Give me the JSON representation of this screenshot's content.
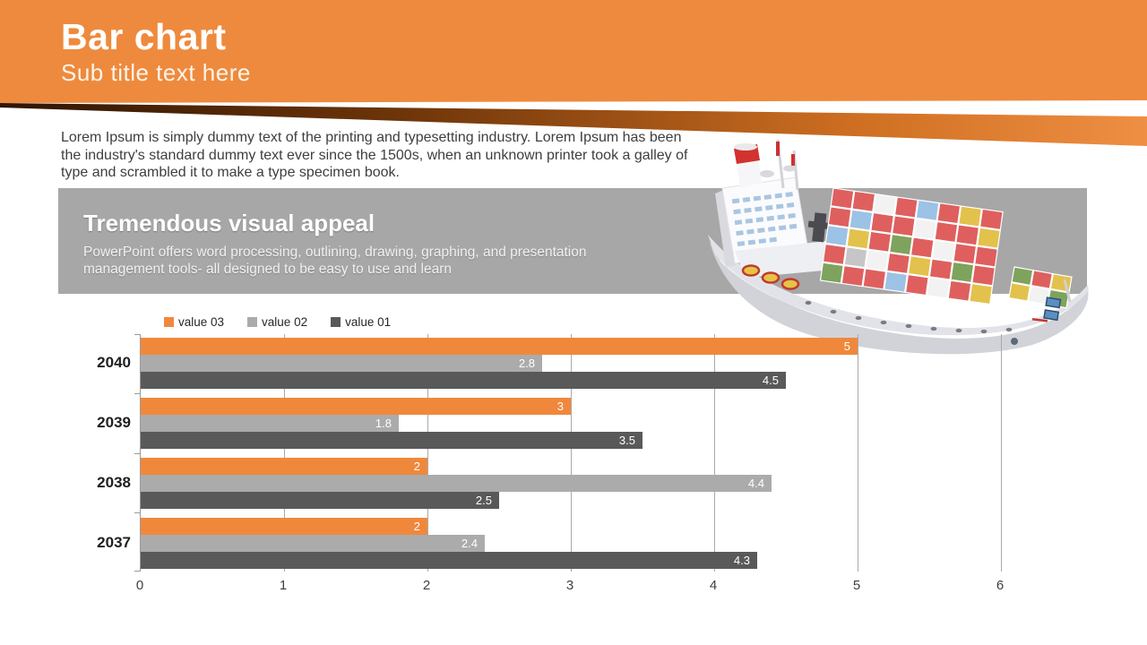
{
  "slide": {
    "title": "Bar chart",
    "subtitle": "Sub title text here",
    "body_text": "Lorem Ipsum is simply dummy text of the printing and typesetting  industry. Lorem Ipsum has been the industry's standard dummy text ever since the 1500s, when an unknown printer took a galley of type and scrambled it to make a type specimen book.",
    "banner": {
      "title": "Tremendous visual appeal",
      "text": "PowerPoint offers word processing, outlining,  drawing, graphing, and presentation management tools- all designed to be easy to use and learn"
    },
    "colors": {
      "accent_orange": "#EE8A3D",
      "stripe_dark": "#3A1C05",
      "banner_gray": "#A7A7A7",
      "body_text": "#3E3E3E"
    }
  },
  "chart_data": {
    "type": "bar",
    "orientation": "horizontal",
    "title": "",
    "categories": [
      "2040",
      "2039",
      "2038",
      "2037"
    ],
    "series": [
      {
        "name": "value 03",
        "color": "#F0883C",
        "values": [
          5,
          3,
          2,
          2
        ]
      },
      {
        "name": "value 02",
        "color": "#ABABAB",
        "values": [
          2.8,
          1.8,
          4.4,
          2.4
        ]
      },
      {
        "name": "value 01",
        "color": "#595959",
        "values": [
          4.5,
          3.5,
          2.5,
          4.3
        ]
      }
    ],
    "xlim": [
      0,
      6
    ],
    "xticks": [
      "0",
      "1",
      "2",
      "3",
      "4",
      "5",
      "6"
    ],
    "grid": true,
    "legend_position": "top-left"
  }
}
